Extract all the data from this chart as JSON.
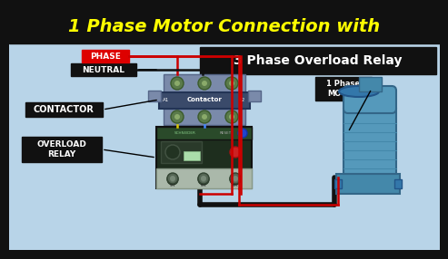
{
  "title_line1": "1 Phase Motor Connection with",
  "title_line2": "3 Phase Overload Relay",
  "bg_color": "#b8d4e8",
  "title_bg": "#111111",
  "title_color": "#ffff00",
  "subtitle_bg": "#111111",
  "subtitle_color": "#ffffff",
  "label_phase": "PHASE",
  "label_neutral": "NEUTRAL",
  "label_contactor": "CONTACTOR",
  "label_overload": "OVERLOAD\nRELAY",
  "label_motor": "1 Phase\nMOTOR",
  "phase_label_bg": "#dd0000",
  "phase_label_color": "#ffffff",
  "contactor_body_color": "#3a4a6a",
  "contactor_top_color": "#6a7a9a",
  "contactor_label": "Contactor",
  "overload_body_color": "#1a2a1a",
  "overload_top_color": "#2a3a2a",
  "wire_red": "#cc0000",
  "wire_black": "#111111",
  "wire_yellow": "#ddcc00",
  "wire_blue": "#4488ff",
  "terminal_color": "#7a9a5a",
  "motor_body": "#5599bb",
  "motor_dark": "#3377aa"
}
